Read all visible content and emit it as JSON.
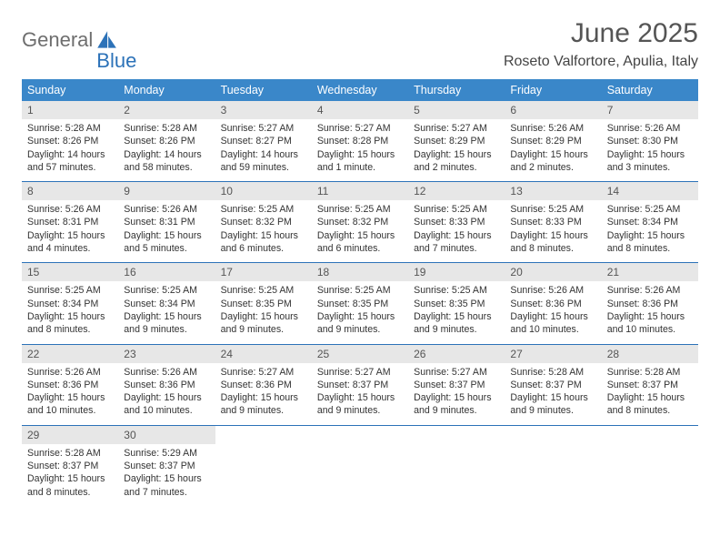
{
  "brand": {
    "part1": "General",
    "part2": "Blue",
    "logo_fill": "#2c72b8"
  },
  "header": {
    "month": "June 2025",
    "location": "Roseto Valfortore, Apulia, Italy"
  },
  "style": {
    "header_bg": "#3a87c9",
    "header_fg": "#ffffff",
    "daynum_bg": "#e7e7e7",
    "daynum_fg": "#555555",
    "rule_color": "#2c72b8",
    "text_color": "#333333",
    "title_color": "#555555",
    "font_family": "Arial"
  },
  "day_names": [
    "Sunday",
    "Monday",
    "Tuesday",
    "Wednesday",
    "Thursday",
    "Friday",
    "Saturday"
  ],
  "weeks": [
    [
      {
        "n": "1",
        "sr": "Sunrise: 5:28 AM",
        "ss": "Sunset: 8:26 PM",
        "dl": "Daylight: 14 hours and 57 minutes."
      },
      {
        "n": "2",
        "sr": "Sunrise: 5:28 AM",
        "ss": "Sunset: 8:26 PM",
        "dl": "Daylight: 14 hours and 58 minutes."
      },
      {
        "n": "3",
        "sr": "Sunrise: 5:27 AM",
        "ss": "Sunset: 8:27 PM",
        "dl": "Daylight: 14 hours and 59 minutes."
      },
      {
        "n": "4",
        "sr": "Sunrise: 5:27 AM",
        "ss": "Sunset: 8:28 PM",
        "dl": "Daylight: 15 hours and 1 minute."
      },
      {
        "n": "5",
        "sr": "Sunrise: 5:27 AM",
        "ss": "Sunset: 8:29 PM",
        "dl": "Daylight: 15 hours and 2 minutes."
      },
      {
        "n": "6",
        "sr": "Sunrise: 5:26 AM",
        "ss": "Sunset: 8:29 PM",
        "dl": "Daylight: 15 hours and 2 minutes."
      },
      {
        "n": "7",
        "sr": "Sunrise: 5:26 AM",
        "ss": "Sunset: 8:30 PM",
        "dl": "Daylight: 15 hours and 3 minutes."
      }
    ],
    [
      {
        "n": "8",
        "sr": "Sunrise: 5:26 AM",
        "ss": "Sunset: 8:31 PM",
        "dl": "Daylight: 15 hours and 4 minutes."
      },
      {
        "n": "9",
        "sr": "Sunrise: 5:26 AM",
        "ss": "Sunset: 8:31 PM",
        "dl": "Daylight: 15 hours and 5 minutes."
      },
      {
        "n": "10",
        "sr": "Sunrise: 5:25 AM",
        "ss": "Sunset: 8:32 PM",
        "dl": "Daylight: 15 hours and 6 minutes."
      },
      {
        "n": "11",
        "sr": "Sunrise: 5:25 AM",
        "ss": "Sunset: 8:32 PM",
        "dl": "Daylight: 15 hours and 6 minutes."
      },
      {
        "n": "12",
        "sr": "Sunrise: 5:25 AM",
        "ss": "Sunset: 8:33 PM",
        "dl": "Daylight: 15 hours and 7 minutes."
      },
      {
        "n": "13",
        "sr": "Sunrise: 5:25 AM",
        "ss": "Sunset: 8:33 PM",
        "dl": "Daylight: 15 hours and 8 minutes."
      },
      {
        "n": "14",
        "sr": "Sunrise: 5:25 AM",
        "ss": "Sunset: 8:34 PM",
        "dl": "Daylight: 15 hours and 8 minutes."
      }
    ],
    [
      {
        "n": "15",
        "sr": "Sunrise: 5:25 AM",
        "ss": "Sunset: 8:34 PM",
        "dl": "Daylight: 15 hours and 8 minutes."
      },
      {
        "n": "16",
        "sr": "Sunrise: 5:25 AM",
        "ss": "Sunset: 8:34 PM",
        "dl": "Daylight: 15 hours and 9 minutes."
      },
      {
        "n": "17",
        "sr": "Sunrise: 5:25 AM",
        "ss": "Sunset: 8:35 PM",
        "dl": "Daylight: 15 hours and 9 minutes."
      },
      {
        "n": "18",
        "sr": "Sunrise: 5:25 AM",
        "ss": "Sunset: 8:35 PM",
        "dl": "Daylight: 15 hours and 9 minutes."
      },
      {
        "n": "19",
        "sr": "Sunrise: 5:25 AM",
        "ss": "Sunset: 8:35 PM",
        "dl": "Daylight: 15 hours and 9 minutes."
      },
      {
        "n": "20",
        "sr": "Sunrise: 5:26 AM",
        "ss": "Sunset: 8:36 PM",
        "dl": "Daylight: 15 hours and 10 minutes."
      },
      {
        "n": "21",
        "sr": "Sunrise: 5:26 AM",
        "ss": "Sunset: 8:36 PM",
        "dl": "Daylight: 15 hours and 10 minutes."
      }
    ],
    [
      {
        "n": "22",
        "sr": "Sunrise: 5:26 AM",
        "ss": "Sunset: 8:36 PM",
        "dl": "Daylight: 15 hours and 10 minutes."
      },
      {
        "n": "23",
        "sr": "Sunrise: 5:26 AM",
        "ss": "Sunset: 8:36 PM",
        "dl": "Daylight: 15 hours and 10 minutes."
      },
      {
        "n": "24",
        "sr": "Sunrise: 5:27 AM",
        "ss": "Sunset: 8:36 PM",
        "dl": "Daylight: 15 hours and 9 minutes."
      },
      {
        "n": "25",
        "sr": "Sunrise: 5:27 AM",
        "ss": "Sunset: 8:37 PM",
        "dl": "Daylight: 15 hours and 9 minutes."
      },
      {
        "n": "26",
        "sr": "Sunrise: 5:27 AM",
        "ss": "Sunset: 8:37 PM",
        "dl": "Daylight: 15 hours and 9 minutes."
      },
      {
        "n": "27",
        "sr": "Sunrise: 5:28 AM",
        "ss": "Sunset: 8:37 PM",
        "dl": "Daylight: 15 hours and 9 minutes."
      },
      {
        "n": "28",
        "sr": "Sunrise: 5:28 AM",
        "ss": "Sunset: 8:37 PM",
        "dl": "Daylight: 15 hours and 8 minutes."
      }
    ],
    [
      {
        "n": "29",
        "sr": "Sunrise: 5:28 AM",
        "ss": "Sunset: 8:37 PM",
        "dl": "Daylight: 15 hours and 8 minutes."
      },
      {
        "n": "30",
        "sr": "Sunrise: 5:29 AM",
        "ss": "Sunset: 8:37 PM",
        "dl": "Daylight: 15 hours and 7 minutes."
      },
      null,
      null,
      null,
      null,
      null
    ]
  ]
}
